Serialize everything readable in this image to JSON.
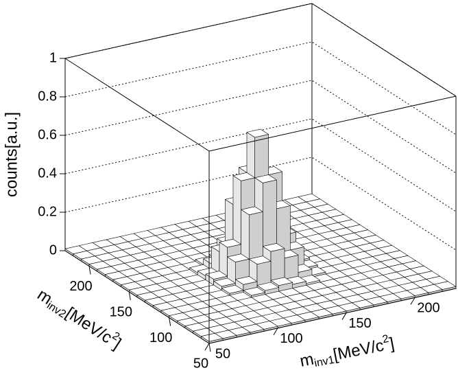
{
  "chart_data": {
    "type": "lego",
    "x_label": {
      "base": "m",
      "sub": "inv1",
      "unit": "[MeV/c",
      "sup": "2",
      "end": "]"
    },
    "y_label": {
      "base": "m",
      "sub": "inv2",
      "unit": "[MeV/c",
      "sup": "2",
      "end": "]"
    },
    "z_label": "counts[a.u.]",
    "xlim": [
      50,
      230
    ],
    "ylim": [
      50,
      230
    ],
    "zlim": [
      0,
      1
    ],
    "xticks": [
      50,
      100,
      150,
      200
    ],
    "yticks": [
      50,
      100,
      150,
      200
    ],
    "zticks": [
      0,
      0.2,
      0.4,
      0.6,
      0.8,
      1
    ],
    "xbins": [
      50,
      60,
      70,
      80,
      90,
      100,
      110,
      120,
      130,
      140,
      150,
      160,
      170,
      180,
      190,
      200,
      210,
      220,
      230
    ],
    "ybins": [
      50,
      60,
      70,
      80,
      90,
      100,
      110,
      120,
      130,
      140,
      150,
      160,
      170,
      180,
      190,
      200,
      210,
      220,
      230
    ],
    "grid": true,
    "color": "#ffffff",
    "values": [
      [
        0.01,
        0.01,
        0.01,
        0.01,
        0.01,
        0.01,
        0.01,
        0.01,
        0.01,
        0.01,
        0.01,
        0.01,
        0.01,
        0.01,
        0.01,
        0.01,
        0.01,
        0.01
      ],
      [
        0.01,
        0.01,
        0.01,
        0.01,
        0.01,
        0.01,
        0.01,
        0.01,
        0.01,
        0.01,
        0.01,
        0.01,
        0.01,
        0.01,
        0.01,
        0.01,
        0.01,
        0.01
      ],
      [
        0.01,
        0.01,
        0.01,
        0.01,
        0.01,
        0.01,
        0.01,
        0.01,
        0.01,
        0.01,
        0.01,
        0.01,
        0.01,
        0.01,
        0.01,
        0.01,
        0.01,
        0.01
      ],
      [
        0.01,
        0.01,
        0.01,
        0.01,
        0.01,
        0.01,
        0.01,
        0.01,
        0.01,
        0.01,
        0.01,
        0.01,
        0.01,
        0.01,
        0.01,
        0.01,
        0.01,
        0.01
      ],
      [
        0.01,
        0.01,
        0.01,
        0.01,
        0.01,
        0.01,
        0.01,
        0.01,
        0.01,
        0.01,
        0.01,
        0.01,
        0.01,
        0.01,
        0.01,
        0.01,
        0.01,
        0.01
      ],
      [
        0.01,
        0.01,
        0.01,
        0.01,
        0.01,
        0.01,
        0.02,
        0.03,
        0.04,
        0.03,
        0.02,
        0.01,
        0.01,
        0.01,
        0.01,
        0.01,
        0.01,
        0.01
      ],
      [
        0.01,
        0.01,
        0.01,
        0.01,
        0.01,
        0.02,
        0.05,
        0.14,
        0.19,
        0.14,
        0.05,
        0.02,
        0.01,
        0.01,
        0.01,
        0.01,
        0.01,
        0.01
      ],
      [
        0.01,
        0.01,
        0.01,
        0.01,
        0.01,
        0.03,
        0.14,
        0.37,
        0.52,
        0.37,
        0.14,
        0.03,
        0.01,
        0.01,
        0.01,
        0.01,
        0.01,
        0.01
      ],
      [
        0.01,
        0.01,
        0.01,
        0.01,
        0.01,
        0.04,
        0.19,
        0.52,
        0.73,
        0.52,
        0.19,
        0.04,
        0.01,
        0.01,
        0.01,
        0.01,
        0.01,
        0.01
      ],
      [
        0.01,
        0.01,
        0.01,
        0.01,
        0.01,
        0.03,
        0.14,
        0.37,
        0.52,
        0.37,
        0.14,
        0.03,
        0.01,
        0.01,
        0.01,
        0.01,
        0.01,
        0.01
      ],
      [
        0.01,
        0.01,
        0.01,
        0.01,
        0.01,
        0.02,
        0.05,
        0.14,
        0.19,
        0.14,
        0.05,
        0.02,
        0.01,
        0.01,
        0.01,
        0.01,
        0.01,
        0.01
      ],
      [
        0.01,
        0.01,
        0.01,
        0.01,
        0.01,
        0.01,
        0.02,
        0.03,
        0.04,
        0.03,
        0.02,
        0.01,
        0.01,
        0.01,
        0.01,
        0.01,
        0.01,
        0.01
      ],
      [
        0.01,
        0.01,
        0.01,
        0.01,
        0.01,
        0.01,
        0.01,
        0.01,
        0.01,
        0.01,
        0.01,
        0.01,
        0.01,
        0.01,
        0.01,
        0.01,
        0.01,
        0.01
      ],
      [
        0.01,
        0.01,
        0.01,
        0.01,
        0.01,
        0.01,
        0.01,
        0.01,
        0.01,
        0.01,
        0.01,
        0.01,
        0.01,
        0.01,
        0.01,
        0.01,
        0.01,
        0.01
      ],
      [
        0.01,
        0.01,
        0.01,
        0.01,
        0.01,
        0.01,
        0.01,
        0.01,
        0.01,
        0.01,
        0.01,
        0.01,
        0.01,
        0.01,
        0.01,
        0.01,
        0.01,
        0.01
      ],
      [
        0.01,
        0.01,
        0.01,
        0.01,
        0.01,
        0.01,
        0.01,
        0.01,
        0.01,
        0.01,
        0.01,
        0.01,
        0.01,
        0.01,
        0.01,
        0.01,
        0.01,
        0.01
      ],
      [
        0.01,
        0.01,
        0.01,
        0.01,
        0.01,
        0.01,
        0.01,
        0.01,
        0.01,
        0.01,
        0.01,
        0.01,
        0.01,
        0.01,
        0.01,
        0.01,
        0.01,
        0.01
      ],
      [
        0.01,
        0.01,
        0.01,
        0.01,
        0.01,
        0.01,
        0.01,
        0.01,
        0.01,
        0.01,
        0.01,
        0.01,
        0.01,
        0.01,
        0.01,
        0.01,
        0.01,
        0.01
      ]
    ]
  }
}
